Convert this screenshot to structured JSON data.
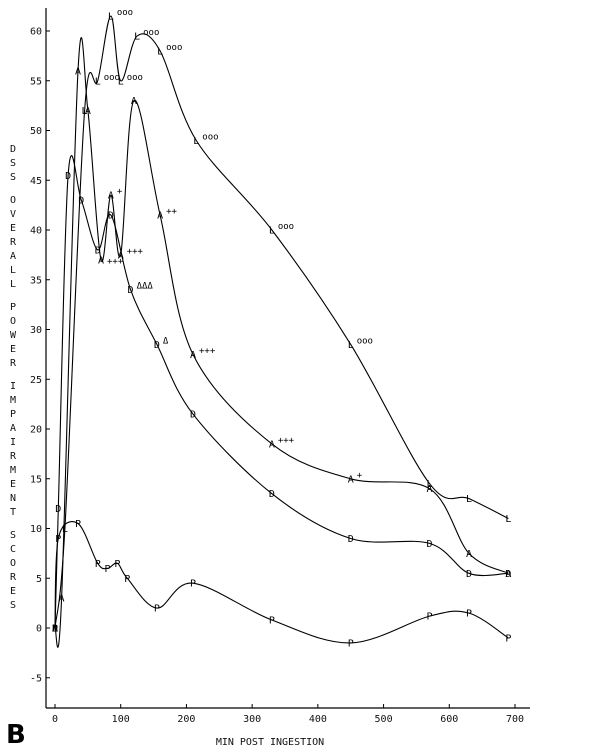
{
  "chart_data": {
    "type": "line",
    "panel_label": "B",
    "xlabel": "MIN POST INGESTION",
    "ylabel": "DSS OVERALL POWER IMPAIRMENT SCORES",
    "xlim": [
      0,
      700
    ],
    "ylim": [
      -7,
      62
    ],
    "x_ticks": [
      0,
      100,
      200,
      300,
      400,
      500,
      600,
      700
    ],
    "y_ticks": [
      -5,
      0,
      5,
      10,
      15,
      20,
      25,
      30,
      35,
      40,
      45,
      50,
      55,
      60
    ],
    "grid": false,
    "series": [
      {
        "marker": "L",
        "points": [
          [
            0,
            0
          ],
          [
            15,
            10
          ],
          [
            45,
            52
          ],
          [
            65,
            55
          ],
          [
            85,
            61.5
          ],
          [
            100,
            55
          ],
          [
            125,
            59.5
          ],
          [
            160,
            58
          ],
          [
            215,
            49
          ],
          [
            330,
            40
          ],
          [
            450,
            28.5
          ],
          [
            570,
            14.5
          ],
          [
            630,
            13
          ],
          [
            690,
            11
          ]
        ],
        "annotations": [
          {
            "x": 85,
            "y": 61.5,
            "text": "ooo"
          },
          {
            "x": 65,
            "y": 55,
            "text": "ooo"
          },
          {
            "x": 100,
            "y": 55,
            "text": "ooo"
          },
          {
            "x": 125,
            "y": 59.5,
            "text": "ooo"
          },
          {
            "x": 160,
            "y": 58,
            "text": "ooo"
          },
          {
            "x": 215,
            "y": 49,
            "text": "ooo"
          },
          {
            "x": 330,
            "y": 40,
            "text": "ooo"
          },
          {
            "x": 450,
            "y": 28.5,
            "text": "ooo"
          }
        ]
      },
      {
        "marker": "A",
        "points": [
          [
            0,
            0
          ],
          [
            10,
            3
          ],
          [
            35,
            56
          ],
          [
            50,
            52
          ],
          [
            70,
            37
          ],
          [
            85,
            43.5
          ],
          [
            100,
            37.5
          ],
          [
            120,
            53
          ],
          [
            160,
            41.5
          ],
          [
            210,
            27.5
          ],
          [
            330,
            18.5
          ],
          [
            450,
            15
          ],
          [
            570,
            14
          ],
          [
            630,
            7.5
          ],
          [
            690,
            5.5
          ]
        ],
        "annotations": [
          {
            "x": 70,
            "y": 36.5,
            "text": "+++"
          },
          {
            "x": 85,
            "y": 43.5,
            "text": "+"
          },
          {
            "x": 100,
            "y": 37.5,
            "text": "+++"
          },
          {
            "x": 160,
            "y": 41.5,
            "text": "++"
          },
          {
            "x": 210,
            "y": 27.5,
            "text": "+++"
          },
          {
            "x": 330,
            "y": 18.5,
            "text": "+++"
          },
          {
            "x": 450,
            "y": 15,
            "text": "+"
          }
        ]
      },
      {
        "marker": "D",
        "points": [
          [
            0,
            0
          ],
          [
            5,
            12
          ],
          [
            20,
            45.5
          ],
          [
            40,
            43
          ],
          [
            65,
            38
          ],
          [
            85,
            41.5
          ],
          [
            115,
            34
          ],
          [
            155,
            28.5
          ],
          [
            210,
            21.5
          ],
          [
            330,
            13.5
          ],
          [
            450,
            9
          ],
          [
            570,
            8.5
          ],
          [
            630,
            5.5
          ],
          [
            690,
            5.5
          ]
        ],
        "annotations": [
          {
            "x": 115,
            "y": 34,
            "text": "ΔΔΔ"
          },
          {
            "x": 155,
            "y": 28.5,
            "text": "Δ"
          }
        ]
      },
      {
        "marker": "P",
        "points": [
          [
            0,
            0
          ],
          [
            5,
            9
          ],
          [
            35,
            10.5
          ],
          [
            65,
            6.5
          ],
          [
            80,
            6
          ],
          [
            95,
            6.5
          ],
          [
            110,
            5
          ],
          [
            155,
            2
          ],
          [
            210,
            4.5
          ],
          [
            330,
            0.8
          ],
          [
            450,
            -1.5
          ],
          [
            570,
            1.2
          ],
          [
            630,
            1.5
          ],
          [
            690,
            -1
          ]
        ],
        "annotations": []
      }
    ]
  }
}
